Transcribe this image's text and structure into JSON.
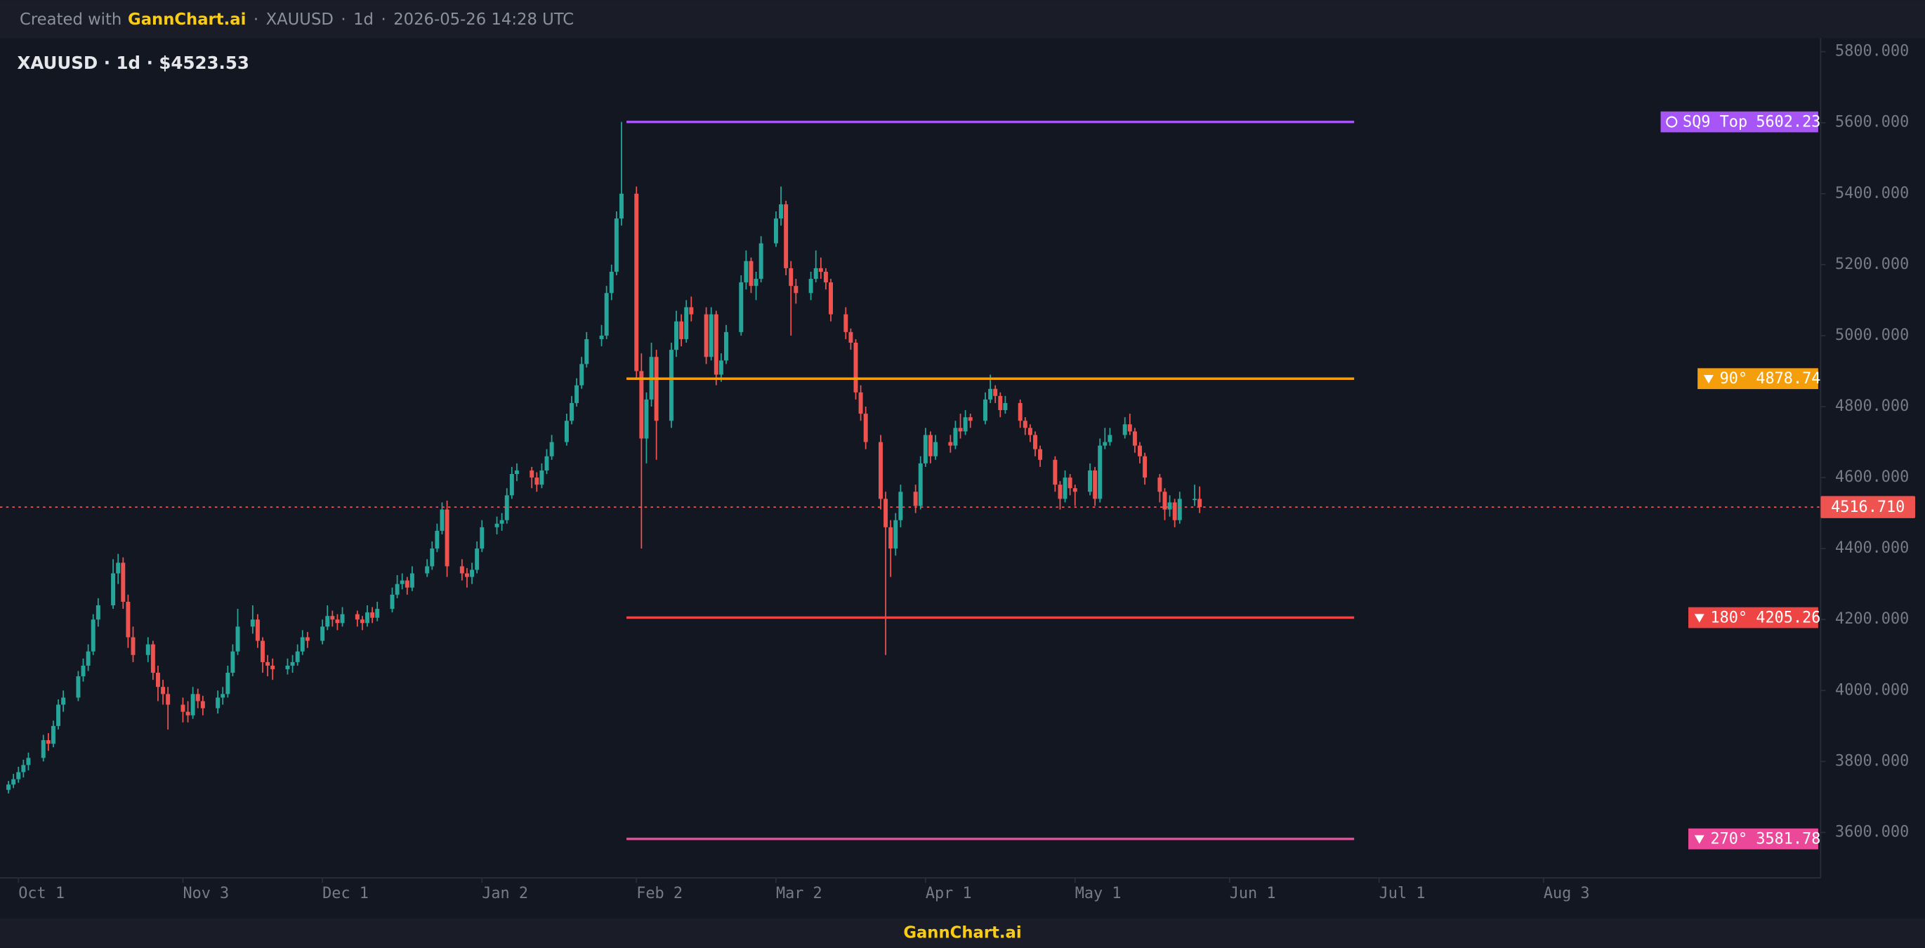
{
  "header": {
    "created": "Created with",
    "brand": "GannChart.ai",
    "symbol": "XAUUSD",
    "interval": "1d",
    "timestamp": "2026-05-26 14:28 UTC"
  },
  "footer": "GannChart.ai",
  "chart_data": {
    "type": "candlestick",
    "title": "XAUUSD · 1d · $4523.53",
    "up_color": "#26a69a",
    "down_color": "#ef5350",
    "xlim": [
      -3.7,
      361.6
    ],
    "ylim": [
      3472,
      5838
    ],
    "xticks": [
      {
        "value": 0,
        "label": "Oct 1"
      },
      {
        "value": 33,
        "label": "Nov 3"
      },
      {
        "value": 61,
        "label": "Dec 1"
      },
      {
        "value": 93,
        "label": "Jan 2"
      },
      {
        "value": 124,
        "label": "Feb 2"
      },
      {
        "value": 152,
        "label": "Mar 2"
      },
      {
        "value": 182,
        "label": "Apr 1"
      },
      {
        "value": 212,
        "label": "May 1"
      },
      {
        "value": 243,
        "label": "Jun 1"
      },
      {
        "value": 273,
        "label": "Jul 1"
      },
      {
        "value": 306,
        "label": "Aug 3"
      }
    ],
    "yticks": [
      {
        "value": 3600,
        "label": "3600.000"
      },
      {
        "value": 3800,
        "label": "3800.000"
      },
      {
        "value": 4000,
        "label": "4000.000"
      },
      {
        "value": 4200,
        "label": "4200.000"
      },
      {
        "value": 4400,
        "label": "4400.000"
      },
      {
        "value": 4600,
        "label": "4600.000"
      },
      {
        "value": 4800,
        "label": "4800.000"
      },
      {
        "value": 5000,
        "label": "5000.000"
      },
      {
        "value": 5200,
        "label": "5200.000"
      },
      {
        "value": 5400,
        "label": "5400.000"
      },
      {
        "value": 5600,
        "label": "5600.000"
      },
      {
        "value": 5800,
        "label": "5800.000"
      }
    ],
    "levels": [
      {
        "name": "SQ9 Top",
        "value": 5602.23,
        "color": "#a855f7",
        "start": 122,
        "end": 268
      },
      {
        "name": "90°",
        "value": 4878.74,
        "color": "#f59e0b",
        "start": 122,
        "end": 268
      },
      {
        "name": "180°",
        "value": 4205.26,
        "color": "#ef4444",
        "start": 122,
        "end": 268
      },
      {
        "name": "270°",
        "value": 3581.78,
        "color": "#ec4899",
        "start": 122,
        "end": 268
      }
    ],
    "last_price": {
      "value": 4516.71,
      "value_label": "4516.710",
      "color": "#ef5350"
    },
    "candles": [
      [
        -2,
        3720,
        3745,
        3710,
        3735
      ],
      [
        -1,
        3735,
        3765,
        3725,
        3750
      ],
      [
        0,
        3750,
        3785,
        3740,
        3770
      ],
      [
        1,
        3770,
        3805,
        3755,
        3790
      ],
      [
        2,
        3790,
        3825,
        3775,
        3810
      ],
      [
        5,
        3810,
        3875,
        3800,
        3860
      ],
      [
        6,
        3860,
        3880,
        3830,
        3850
      ],
      [
        7,
        3850,
        3915,
        3840,
        3900
      ],
      [
        8,
        3900,
        3975,
        3890,
        3960
      ],
      [
        9,
        3960,
        4000,
        3940,
        3980
      ],
      [
        12,
        3980,
        4055,
        3970,
        4040
      ],
      [
        13,
        4040,
        4090,
        4025,
        4070
      ],
      [
        14,
        4070,
        4130,
        4055,
        4110
      ],
      [
        15,
        4110,
        4215,
        4100,
        4200
      ],
      [
        16,
        4200,
        4260,
        4180,
        4240
      ],
      [
        19,
        4240,
        4370,
        4230,
        4330
      ],
      [
        20,
        4330,
        4385,
        4300,
        4360
      ],
      [
        21,
        4360,
        4375,
        4230,
        4250
      ],
      [
        22,
        4250,
        4270,
        4120,
        4150
      ],
      [
        23,
        4150,
        4180,
        4080,
        4100
      ],
      [
        26,
        4100,
        4150,
        4080,
        4130
      ],
      [
        27,
        4130,
        4140,
        4030,
        4050
      ],
      [
        28,
        4050,
        4070,
        3970,
        4010
      ],
      [
        29,
        4010,
        4030,
        3960,
        3990
      ],
      [
        30,
        3990,
        4010,
        3890,
        3960
      ],
      [
        33,
        3960,
        3980,
        3910,
        3940
      ],
      [
        34,
        3940,
        3970,
        3910,
        3930
      ],
      [
        35,
        3930,
        4010,
        3920,
        3990
      ],
      [
        36,
        3990,
        4005,
        3950,
        3970
      ],
      [
        37,
        3970,
        3985,
        3930,
        3950
      ],
      [
        40,
        3950,
        4000,
        3935,
        3980
      ],
      [
        41,
        3980,
        4010,
        3960,
        3990
      ],
      [
        42,
        3990,
        4070,
        3980,
        4050
      ],
      [
        43,
        4050,
        4130,
        4040,
        4110
      ],
      [
        44,
        4110,
        4230,
        4100,
        4180
      ],
      [
        47,
        4180,
        4240,
        4160,
        4200
      ],
      [
        48,
        4200,
        4215,
        4120,
        4140
      ],
      [
        49,
        4140,
        4150,
        4050,
        4080
      ],
      [
        50,
        4080,
        4100,
        4040,
        4070
      ],
      [
        51,
        4070,
        4090,
        4030,
        4060
      ],
      [
        54,
        4060,
        4090,
        4045,
        4070
      ],
      [
        55,
        4070,
        4100,
        4050,
        4080
      ],
      [
        56,
        4080,
        4130,
        4070,
        4110
      ],
      [
        57,
        4110,
        4170,
        4100,
        4150
      ],
      [
        58,
        4150,
        4165,
        4120,
        4140
      ],
      [
        61,
        4140,
        4200,
        4130,
        4180
      ],
      [
        62,
        4180,
        4240,
        4170,
        4210
      ],
      [
        63,
        4210,
        4225,
        4180,
        4200
      ],
      [
        64,
        4200,
        4215,
        4170,
        4190
      ],
      [
        65,
        4190,
        4235,
        4180,
        4215
      ],
      [
        68,
        4215,
        4225,
        4180,
        4200
      ],
      [
        69,
        4200,
        4210,
        4170,
        4190
      ],
      [
        70,
        4190,
        4240,
        4180,
        4220
      ],
      [
        71,
        4220,
        4235,
        4190,
        4205
      ],
      [
        72,
        4205,
        4250,
        4195,
        4230
      ],
      [
        75,
        4230,
        4290,
        4220,
        4270
      ],
      [
        76,
        4270,
        4325,
        4260,
        4300
      ],
      [
        77,
        4300,
        4330,
        4285,
        4310
      ],
      [
        78,
        4310,
        4320,
        4270,
        4290
      ],
      [
        79,
        4290,
        4350,
        4280,
        4330
      ],
      [
        82,
        4330,
        4370,
        4320,
        4350
      ],
      [
        83,
        4350,
        4420,
        4340,
        4400
      ],
      [
        84,
        4400,
        4470,
        4390,
        4450
      ],
      [
        85,
        4450,
        4530,
        4440,
        4510
      ],
      [
        86,
        4510,
        4535,
        4320,
        4350
      ],
      [
        89,
        4350,
        4370,
        4310,
        4330
      ],
      [
        90,
        4330,
        4345,
        4290,
        4320
      ],
      [
        91,
        4320,
        4360,
        4300,
        4340
      ],
      [
        92,
        4340,
        4420,
        4330,
        4400
      ],
      [
        93,
        4400,
        4480,
        4390,
        4460
      ],
      [
        96,
        4460,
        4490,
        4440,
        4470
      ],
      [
        97,
        4470,
        4500,
        4450,
        4480
      ],
      [
        98,
        4480,
        4570,
        4470,
        4550
      ],
      [
        99,
        4550,
        4630,
        4540,
        4610
      ],
      [
        100,
        4610,
        4640,
        4590,
        4620
      ],
      [
        103,
        4620,
        4630,
        4570,
        4600
      ],
      [
        104,
        4600,
        4615,
        4560,
        4580
      ],
      [
        105,
        4580,
        4640,
        4570,
        4620
      ],
      [
        106,
        4620,
        4680,
        4610,
        4660
      ],
      [
        107,
        4660,
        4720,
        4650,
        4700
      ],
      [
        110,
        4700,
        4780,
        4690,
        4760
      ],
      [
        111,
        4760,
        4830,
        4750,
        4810
      ],
      [
        112,
        4810,
        4880,
        4800,
        4860
      ],
      [
        113,
        4860,
        4940,
        4850,
        4920
      ],
      [
        114,
        4920,
        5010,
        4910,
        4990
      ],
      [
        117,
        4990,
        5030,
        4970,
        5000
      ],
      [
        118,
        5000,
        5140,
        4990,
        5120
      ],
      [
        119,
        5120,
        5200,
        5100,
        5180
      ],
      [
        120,
        5180,
        5350,
        5170,
        5330
      ],
      [
        121,
        5330,
        5602.23,
        5310,
        5400
      ],
      [
        124,
        5400,
        5420,
        4880,
        4900
      ],
      [
        125,
        4900,
        4950,
        4400,
        4710
      ],
      [
        126,
        4710,
        4840,
        4640,
        4820
      ],
      [
        127,
        4820,
        4980,
        4800,
        4940
      ],
      [
        128,
        4940,
        4960,
        4650,
        4760
      ],
      [
        131,
        4760,
        4980,
        4740,
        4960
      ],
      [
        132,
        4960,
        5070,
        4940,
        5040
      ],
      [
        133,
        5040,
        5060,
        4970,
        4990
      ],
      [
        134,
        4990,
        5100,
        4980,
        5080
      ],
      [
        135,
        5080,
        5110,
        5040,
        5060
      ],
      [
        138,
        5060,
        5080,
        4920,
        4940
      ],
      [
        139,
        4940,
        5080,
        4930,
        5060
      ],
      [
        140,
        5060,
        5070,
        4860,
        4890
      ],
      [
        141,
        4890,
        4950,
        4870,
        4930
      ],
      [
        142,
        4930,
        5030,
        4920,
        5010
      ],
      [
        145,
        5010,
        5170,
        5000,
        5150
      ],
      [
        146,
        5150,
        5240,
        5130,
        5210
      ],
      [
        147,
        5210,
        5220,
        5120,
        5140
      ],
      [
        148,
        5140,
        5180,
        5100,
        5160
      ],
      [
        149,
        5160,
        5280,
        5150,
        5260
      ],
      [
        152,
        5260,
        5350,
        5250,
        5330
      ],
      [
        153,
        5330,
        5420,
        5310,
        5370
      ],
      [
        154,
        5370,
        5380,
        5170,
        5190
      ],
      [
        155,
        5190,
        5210,
        5000,
        5140
      ],
      [
        156,
        5140,
        5160,
        5090,
        5120
      ],
      [
        159,
        5120,
        5180,
        5100,
        5160
      ],
      [
        160,
        5160,
        5240,
        5150,
        5190
      ],
      [
        161,
        5190,
        5220,
        5160,
        5180
      ],
      [
        162,
        5180,
        5190,
        5130,
        5150
      ],
      [
        163,
        5150,
        5160,
        5040,
        5060
      ],
      [
        166,
        5060,
        5080,
        4990,
        5010
      ],
      [
        167,
        5010,
        5020,
        4960,
        4980
      ],
      [
        168,
        4980,
        4990,
        4820,
        4840
      ],
      [
        169,
        4840,
        4860,
        4760,
        4780
      ],
      [
        170,
        4780,
        4800,
        4680,
        4700
      ],
      [
        173,
        4700,
        4720,
        4510,
        4540
      ],
      [
        174,
        4540,
        4560,
        4100,
        4460
      ],
      [
        175,
        4460,
        4480,
        4320,
        4400
      ],
      [
        176,
        4400,
        4500,
        4380,
        4480
      ],
      [
        177,
        4480,
        4580,
        4460,
        4560
      ],
      [
        180,
        4560,
        4580,
        4500,
        4520
      ],
      [
        181,
        4520,
        4660,
        4510,
        4640
      ],
      [
        182,
        4640,
        4740,
        4630,
        4720
      ],
      [
        183,
        4720,
        4730,
        4640,
        4660
      ],
      [
        184,
        4660,
        4720,
        4650,
        4700
      ],
      [
        187,
        4700,
        4720,
        4670,
        4690
      ],
      [
        188,
        4690,
        4760,
        4680,
        4740
      ],
      [
        189,
        4740,
        4780,
        4710,
        4730
      ],
      [
        190,
        4730,
        4790,
        4720,
        4770
      ],
      [
        191,
        4770,
        4780,
        4740,
        4760
      ],
      [
        194,
        4760,
        4840,
        4750,
        4820
      ],
      [
        195,
        4820,
        4890,
        4810,
        4850
      ],
      [
        196,
        4850,
        4860,
        4810,
        4830
      ],
      [
        197,
        4830,
        4840,
        4770,
        4790
      ],
      [
        198,
        4790,
        4830,
        4780,
        4810
      ],
      [
        201,
        4810,
        4820,
        4740,
        4760
      ],
      [
        202,
        4760,
        4770,
        4720,
        4740
      ],
      [
        203,
        4740,
        4750,
        4700,
        4720
      ],
      [
        204,
        4720,
        4730,
        4660,
        4680
      ],
      [
        205,
        4680,
        4690,
        4630,
        4650
      ],
      [
        208,
        4650,
        4660,
        4560,
        4580
      ],
      [
        209,
        4580,
        4590,
        4510,
        4540
      ],
      [
        210,
        4540,
        4620,
        4530,
        4600
      ],
      [
        211,
        4600,
        4610,
        4550,
        4570
      ],
      [
        212,
        4570,
        4580,
        4520,
        4560
      ],
      [
        215,
        4560,
        4640,
        4550,
        4620
      ],
      [
        216,
        4620,
        4630,
        4520,
        4540
      ],
      [
        217,
        4540,
        4710,
        4530,
        4690
      ],
      [
        218,
        4690,
        4740,
        4680,
        4700
      ],
      [
        219,
        4700,
        4740,
        4690,
        4720
      ],
      [
        222,
        4720,
        4770,
        4710,
        4750
      ],
      [
        223,
        4750,
        4780,
        4720,
        4730
      ],
      [
        224,
        4730,
        4740,
        4670,
        4690
      ],
      [
        225,
        4690,
        4700,
        4640,
        4660
      ],
      [
        226,
        4660,
        4670,
        4580,
        4600
      ],
      [
        229,
        4600,
        4610,
        4530,
        4560
      ],
      [
        230,
        4560,
        4570,
        4480,
        4510
      ],
      [
        231,
        4510,
        4550,
        4490,
        4530
      ],
      [
        232,
        4530,
        4540,
        4460,
        4480
      ],
      [
        233,
        4480,
        4560,
        4470,
        4540
      ],
      [
        236,
        4540,
        4580,
        4520,
        4540
      ],
      [
        237,
        4540,
        4575,
        4500,
        4516.71
      ]
    ]
  }
}
